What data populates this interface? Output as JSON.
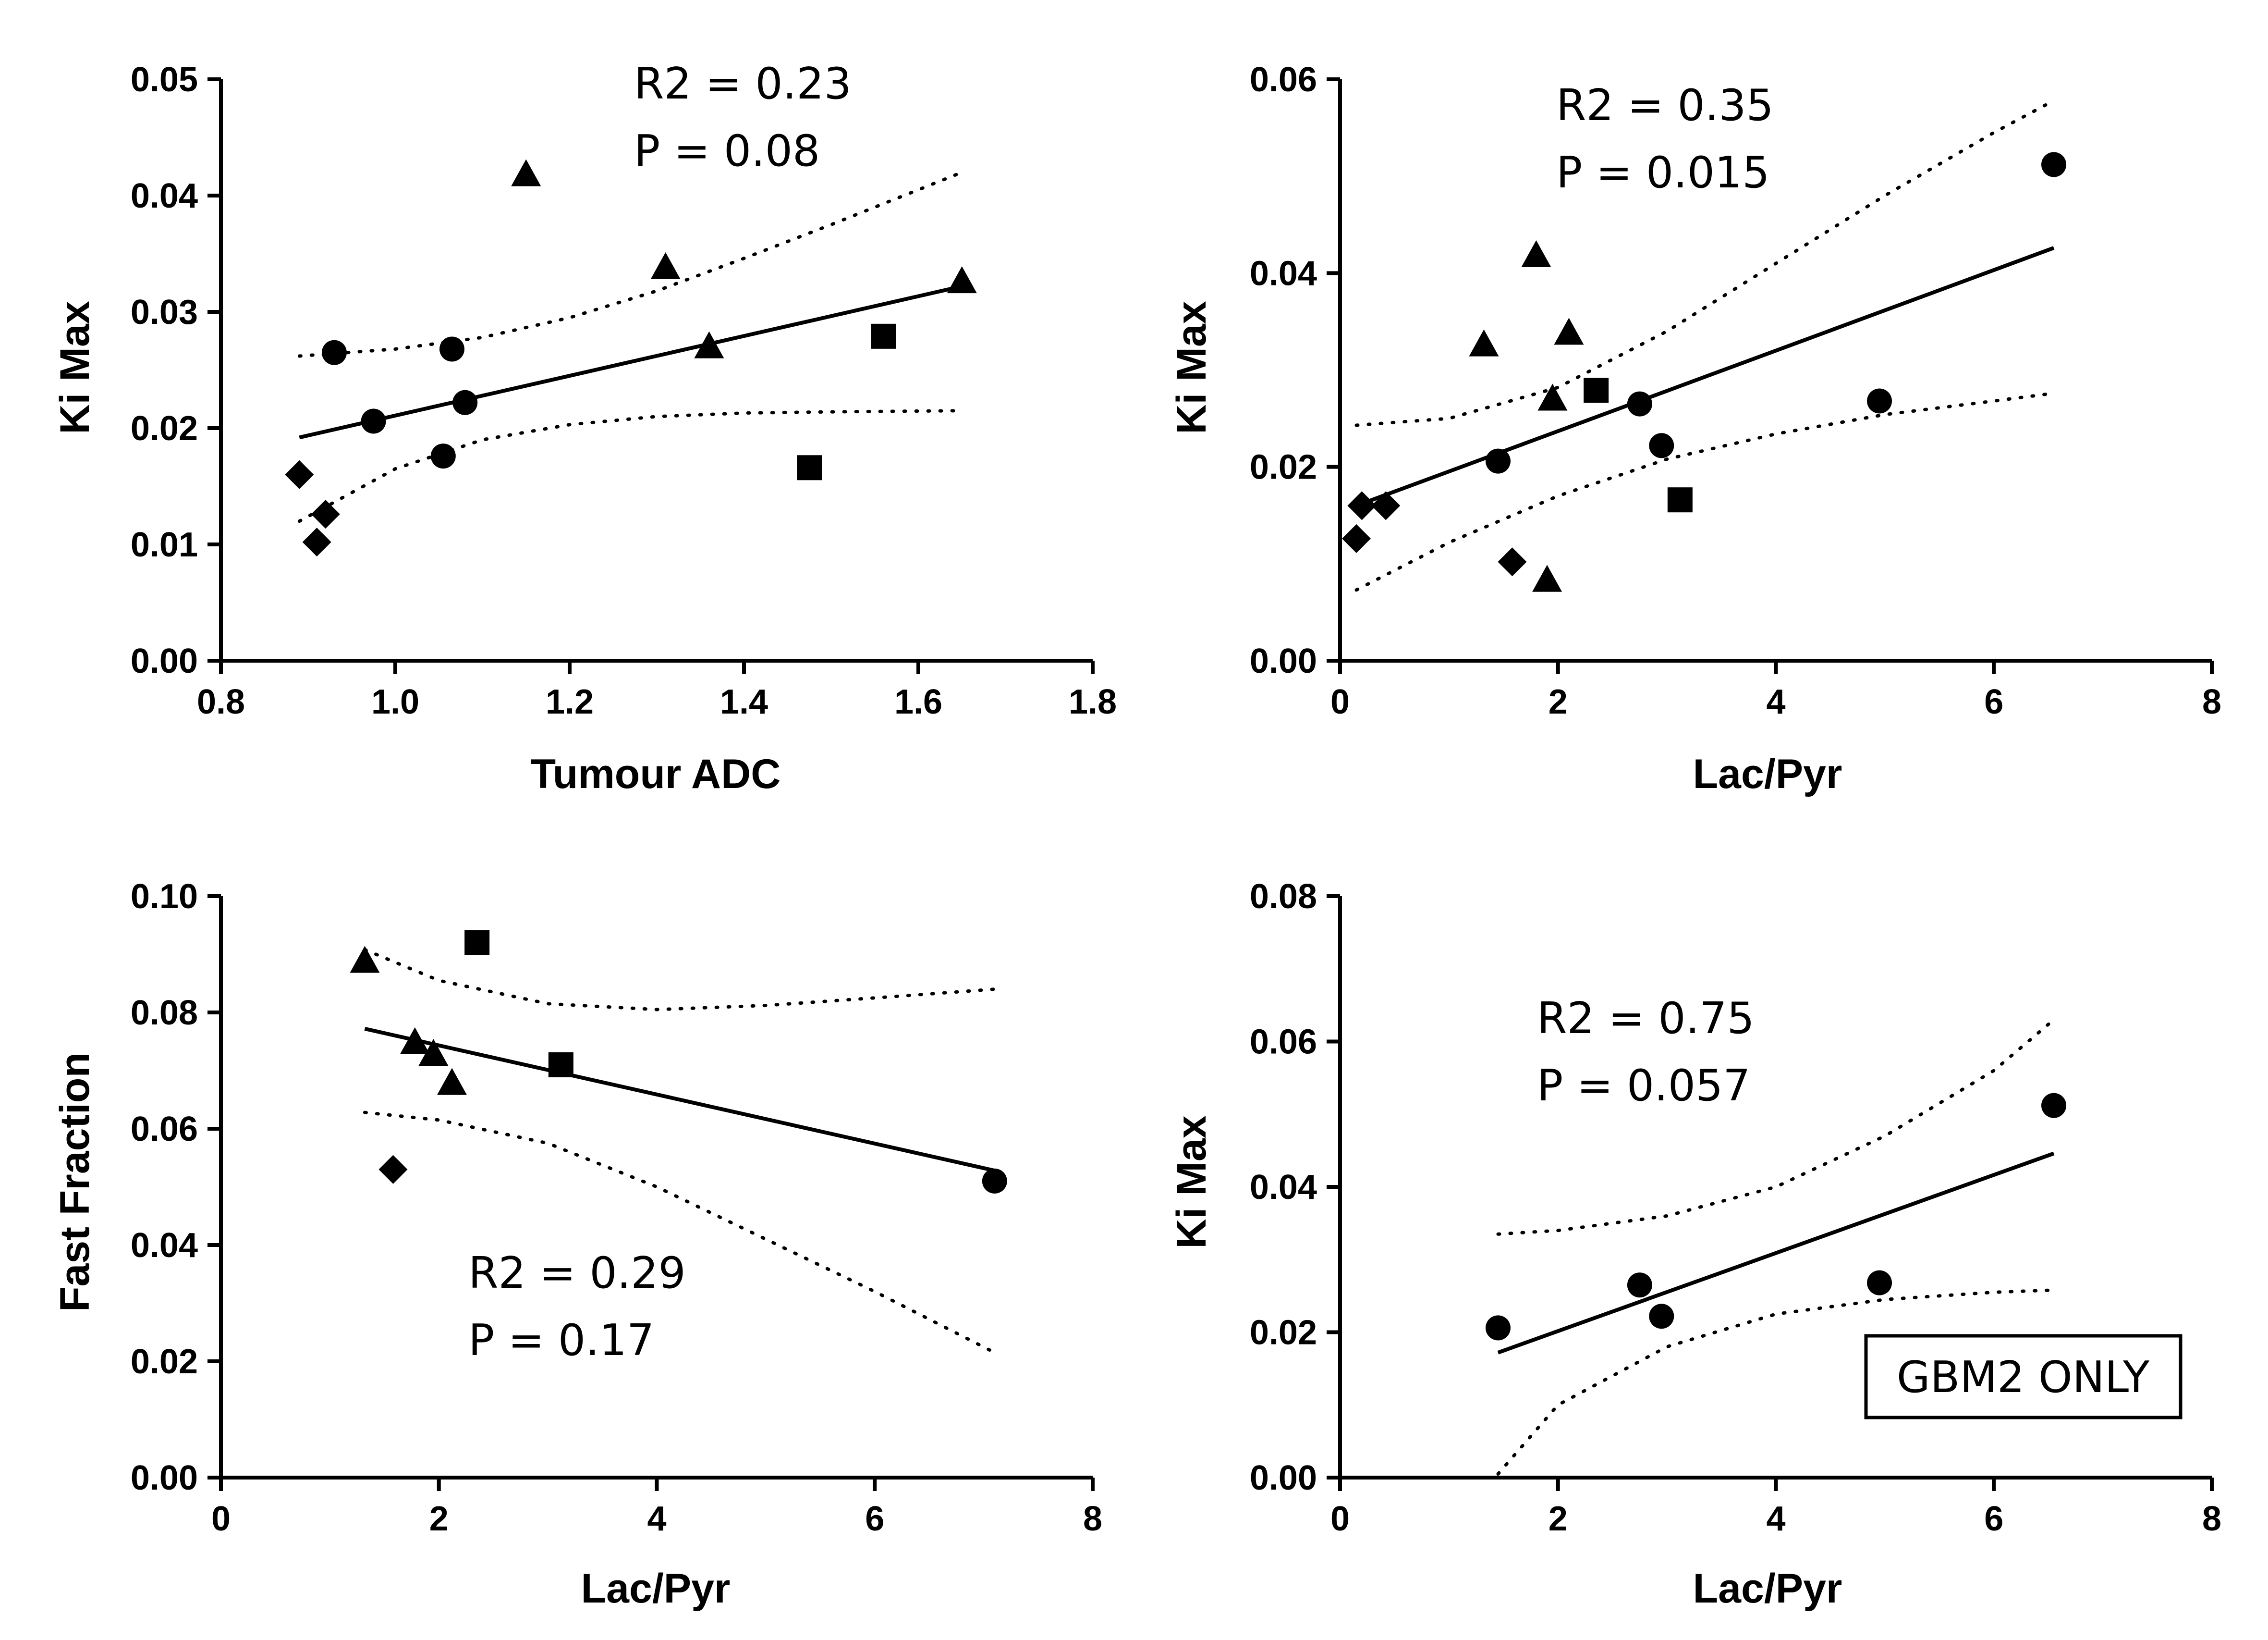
{
  "chart_data": [
    {
      "id": "p1",
      "type": "scatter",
      "xlabel": "Tumour ADC",
      "ylabel": "Ki Max",
      "xlim": [
        0.8,
        1.8
      ],
      "ylim": [
        0.0,
        0.05
      ],
      "xticks": [
        0.8,
        1.0,
        1.2,
        1.4,
        1.6,
        1.8
      ],
      "xtick_labels": [
        "0.8",
        "1.0",
        "1.2",
        "1.4",
        "1.6",
        "1.8"
      ],
      "yticks": [
        0.0,
        0.01,
        0.02,
        0.03,
        0.04,
        0.05
      ],
      "ytick_labels": [
        "0.00",
        "0.01",
        "0.02",
        "0.03",
        "0.04",
        "0.05"
      ],
      "annotations": [
        "R2 = 0.23",
        "P = 0.08"
      ],
      "series": [
        {
          "name": "circle",
          "marker": "circle",
          "points": [
            [
              0.93,
              0.0265
            ],
            [
              0.975,
              0.0206
            ],
            [
              1.055,
              0.0176
            ],
            [
              1.065,
              0.0268
            ],
            [
              1.08,
              0.0222
            ]
          ]
        },
        {
          "name": "triangle",
          "marker": "triangle",
          "points": [
            [
              1.15,
              0.0418
            ],
            [
              1.31,
              0.0338
            ],
            [
              1.36,
              0.027
            ],
            [
              1.65,
              0.0326
            ]
          ]
        },
        {
          "name": "square",
          "marker": "square",
          "points": [
            [
              1.475,
              0.0166
            ],
            [
              1.56,
              0.0279
            ]
          ]
        },
        {
          "name": "diamond",
          "marker": "diamond",
          "points": [
            [
              0.89,
              0.016
            ],
            [
              0.91,
              0.0102
            ],
            [
              0.92,
              0.0126
            ]
          ]
        }
      ],
      "fit": {
        "x": [
          0.89,
          1.65
        ],
        "y": [
          0.0192,
          0.0322
        ]
      },
      "ci_upper": {
        "x": [
          0.89,
          1.0,
          1.1,
          1.2,
          1.3,
          1.4,
          1.5,
          1.65
        ],
        "y": [
          0.0262,
          0.0268,
          0.0278,
          0.0295,
          0.0318,
          0.0346,
          0.0375,
          0.042
        ]
      },
      "ci_lower": {
        "x": [
          0.89,
          1.0,
          1.1,
          1.2,
          1.3,
          1.4,
          1.5,
          1.65
        ],
        "y": [
          0.012,
          0.0165,
          0.019,
          0.0203,
          0.021,
          0.0213,
          0.0214,
          0.0215
        ]
      }
    },
    {
      "id": "p2",
      "type": "scatter",
      "xlabel": "Lac/Pyr",
      "ylabel": "Ki Max",
      "xlim": [
        0,
        8
      ],
      "ylim": [
        0.0,
        0.06
      ],
      "xticks": [
        0,
        2,
        4,
        6,
        8
      ],
      "xtick_labels": [
        "0",
        "2",
        "4",
        "6",
        "8"
      ],
      "yticks": [
        0.0,
        0.02,
        0.04,
        0.06
      ],
      "ytick_labels": [
        "0.00",
        "0.02",
        "0.04",
        "0.06"
      ],
      "annotations": [
        "R2 = 0.35",
        "P = 0.015"
      ],
      "series": [
        {
          "name": "circle",
          "marker": "circle",
          "points": [
            [
              1.45,
              0.0206
            ],
            [
              2.75,
              0.0265
            ],
            [
              2.95,
              0.0222
            ],
            [
              4.95,
              0.0268
            ],
            [
              6.55,
              0.0512
            ]
          ]
        },
        {
          "name": "triangle",
          "marker": "triangle",
          "points": [
            [
              1.32,
              0.0326
            ],
            [
              1.8,
              0.0418
            ],
            [
              1.9,
              0.0083
            ],
            [
              1.95,
              0.027
            ],
            [
              2.1,
              0.0338
            ]
          ]
        },
        {
          "name": "square",
          "marker": "square",
          "points": [
            [
              2.35,
              0.0279
            ],
            [
              3.12,
              0.0166
            ]
          ]
        },
        {
          "name": "diamond",
          "marker": "diamond",
          "points": [
            [
              0.15,
              0.0126
            ],
            [
              0.2,
              0.016
            ],
            [
              0.42,
              0.016
            ],
            [
              1.58,
              0.0102
            ]
          ]
        }
      ],
      "fit": {
        "x": [
          0.15,
          6.55
        ],
        "y": [
          0.016,
          0.0426
        ]
      },
      "ci_upper": {
        "x": [
          0.15,
          1,
          2,
          3,
          4,
          5,
          6,
          6.55
        ],
        "y": [
          0.0243,
          0.025,
          0.0282,
          0.034,
          0.041,
          0.048,
          0.0545,
          0.0578
        ]
      },
      "ci_lower": {
        "x": [
          0.15,
          1,
          2,
          3,
          4,
          5,
          6,
          6.55
        ],
        "y": [
          0.0073,
          0.0122,
          0.017,
          0.0208,
          0.0234,
          0.0254,
          0.0268,
          0.0276
        ]
      }
    },
    {
      "id": "p3",
      "type": "scatter",
      "xlabel": "Lac/Pyr",
      "ylabel": "Fast Fraction",
      "xlim": [
        0,
        8
      ],
      "ylim": [
        0.0,
        0.1
      ],
      "xticks": [
        0,
        2,
        4,
        6,
        8
      ],
      "xtick_labels": [
        "0",
        "2",
        "4",
        "6",
        "8"
      ],
      "yticks": [
        0.0,
        0.02,
        0.04,
        0.06,
        0.08,
        0.1
      ],
      "ytick_labels": [
        "0.00",
        "0.02",
        "0.04",
        "0.06",
        "0.08",
        "0.10"
      ],
      "annotations": [
        "R2 = 0.29",
        "P = 0.17"
      ],
      "series": [
        {
          "name": "circle",
          "marker": "circle",
          "points": [
            [
              7.1,
              0.051
            ]
          ]
        },
        {
          "name": "triangle",
          "marker": "triangle",
          "points": [
            [
              1.32,
              0.0888
            ],
            [
              1.78,
              0.0748
            ],
            [
              1.95,
              0.0728
            ],
            [
              2.12,
              0.0678
            ]
          ]
        },
        {
          "name": "square",
          "marker": "square",
          "points": [
            [
              2.35,
              0.092
            ],
            [
              3.12,
              0.071
            ]
          ]
        },
        {
          "name": "diamond",
          "marker": "diamond",
          "points": [
            [
              1.58,
              0.053
            ]
          ]
        }
      ],
      "fit": {
        "x": [
          1.32,
          7.1
        ],
        "y": [
          0.0772,
          0.0528
        ]
      },
      "ci_upper": {
        "x": [
          1.32,
          2,
          3,
          4,
          5,
          6,
          7.1
        ],
        "y": [
          0.0908,
          0.0855,
          0.0815,
          0.0805,
          0.0812,
          0.0825,
          0.084
        ]
      },
      "ci_lower": {
        "x": [
          1.32,
          2,
          3,
          4,
          5,
          6,
          7.1
        ],
        "y": [
          0.0628,
          0.0615,
          0.0575,
          0.05,
          0.041,
          0.032,
          0.0215
        ]
      }
    },
    {
      "id": "p4",
      "type": "scatter",
      "xlabel": "Lac/Pyr",
      "ylabel": "Ki Max",
      "xlim": [
        0,
        8
      ],
      "ylim": [
        0.0,
        0.08
      ],
      "xticks": [
        0,
        2,
        4,
        6,
        8
      ],
      "xtick_labels": [
        "0",
        "2",
        "4",
        "6",
        "8"
      ],
      "yticks": [
        0.0,
        0.02,
        0.04,
        0.06,
        0.08
      ],
      "ytick_labels": [
        "0.00",
        "0.02",
        "0.04",
        "0.06",
        "0.08"
      ],
      "annotations": [
        "R2 = 0.75",
        "P = 0.057"
      ],
      "box_label": "GBM2 ONLY",
      "series": [
        {
          "name": "circle",
          "marker": "circle",
          "points": [
            [
              1.45,
              0.0206
            ],
            [
              2.75,
              0.0265
            ],
            [
              2.95,
              0.0222
            ],
            [
              4.95,
              0.0268
            ],
            [
              6.55,
              0.0512
            ]
          ]
        }
      ],
      "fit": {
        "x": [
          1.45,
          6.55
        ],
        "y": [
          0.0172,
          0.0446
        ]
      },
      "ci_upper": {
        "x": [
          1.45,
          2,
          3,
          4,
          5,
          6,
          6.55
        ],
        "y": [
          0.0335,
          0.034,
          0.036,
          0.04,
          0.047,
          0.056,
          0.063
        ]
      },
      "ci_lower": {
        "x": [
          1.45,
          2,
          3,
          4,
          5,
          6,
          6.55
        ],
        "y": [
          0.0005,
          0.01,
          0.018,
          0.0225,
          0.0245,
          0.0255,
          0.0258
        ]
      }
    }
  ]
}
